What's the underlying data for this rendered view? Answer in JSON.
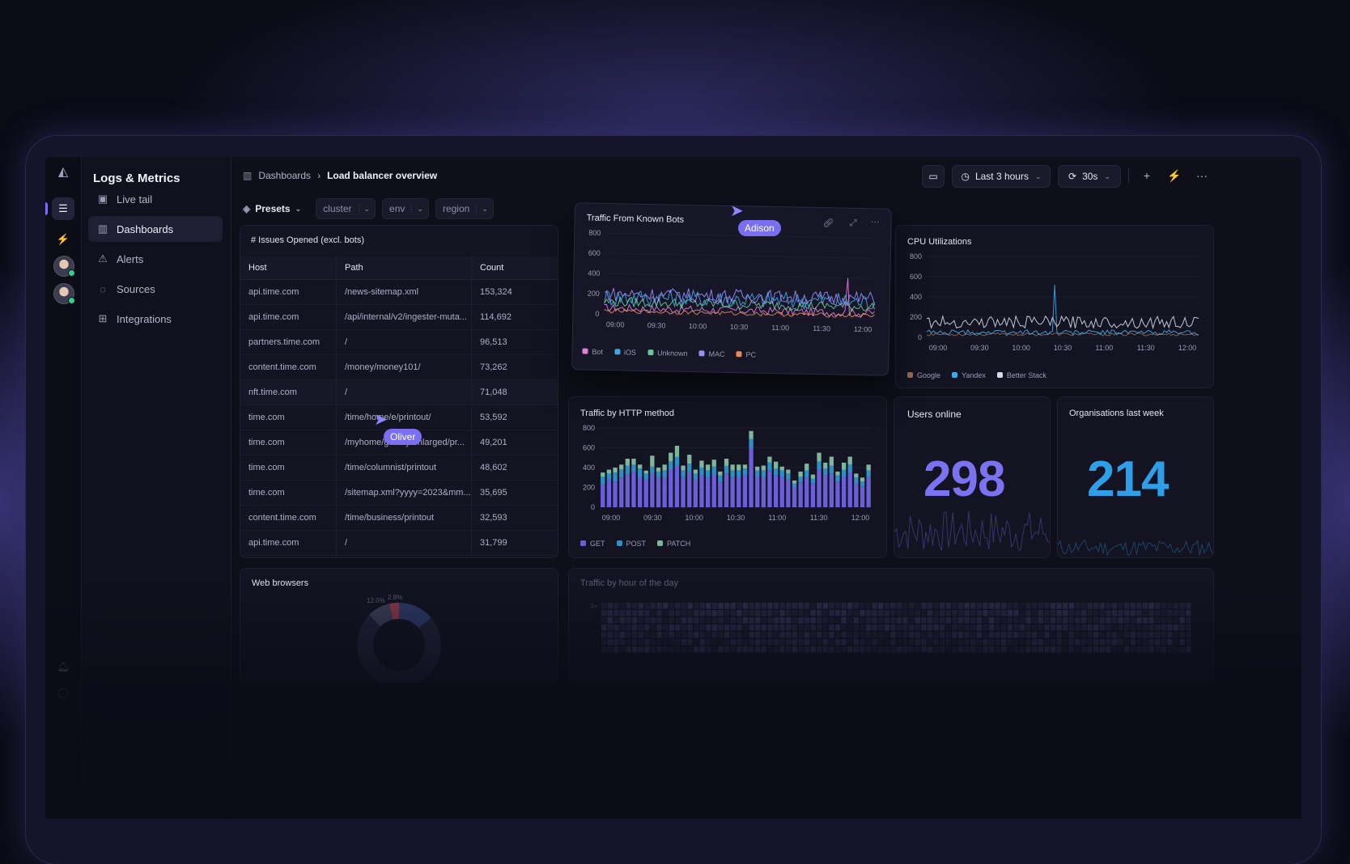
{
  "app": {
    "title": "Logs & Metrics"
  },
  "sidebar": {
    "items": [
      {
        "label": "Live tail",
        "icon": "terminal-icon",
        "glyph": "▣"
      },
      {
        "label": "Dashboards",
        "icon": "dashboard-icon",
        "glyph": "▥",
        "active": true
      },
      {
        "label": "Alerts",
        "icon": "alert-triangle-icon",
        "glyph": "⚠"
      },
      {
        "label": "Sources",
        "icon": "sources-icon",
        "glyph": "◌"
      },
      {
        "label": "Integrations",
        "icon": "integrations-icon",
        "glyph": "⊞"
      }
    ]
  },
  "breadcrumb": {
    "root": "Dashboards",
    "sep": "›",
    "current": "Load balancer overview"
  },
  "header": {
    "time_range": "Last 3 hours",
    "refresh": "30s",
    "add": "+",
    "bolt": "⚡",
    "more": "···"
  },
  "filters": {
    "presets": "Presets",
    "chips": [
      "cluster",
      "env",
      "region"
    ]
  },
  "issues_panel": {
    "title": "# Issues Opened (excl. bots)",
    "columns": [
      "Host",
      "Path",
      "Count"
    ],
    "rows": [
      [
        "api.time.com",
        "/news-sitemap.xml",
        "153,324"
      ],
      [
        "api.time.com",
        "/api/internal/v2/ingester-muta...",
        "114,692"
      ],
      [
        "partners.time.com",
        "/",
        "96,513"
      ],
      [
        "content.time.com",
        "/money/money101/",
        "73,262"
      ],
      [
        "nft.time.com",
        "/",
        "71,048"
      ],
      [
        "time.com",
        "/time/home/e/printout/",
        "53,592"
      ],
      [
        "time.com",
        "/myhome/gallery/enlarged/pr...",
        "49,201"
      ],
      [
        "time.com",
        "/time/columnist/printout",
        "48,602"
      ],
      [
        "time.com",
        "/sitemap.xml?yyyy=2023&mm...",
        "35,695"
      ],
      [
        "content.time.com",
        "/time/business/printout",
        "32,593"
      ],
      [
        "api.time.com",
        "/",
        "31,799"
      ]
    ]
  },
  "cursors": [
    {
      "name": "Oliver"
    },
    {
      "name": "Adison"
    }
  ],
  "bots_panel": {
    "title": "Traffic From Known Bots"
  },
  "cpu_panel": {
    "title": "CPU Utilizations"
  },
  "http_panel": {
    "title": "Traffic by HTTP method"
  },
  "users_online": {
    "title": "Users online",
    "value": "298",
    "color": "#7b72f2"
  },
  "orgs_last_week": {
    "title": "Organisations last week",
    "value": "214",
    "color": "#2f9ee8"
  },
  "browsers_panel": {
    "title": "Web browsers",
    "slice_labels": [
      "12.0%",
      "2.8%"
    ]
  },
  "hour_panel": {
    "title": "Traffic by hour of the day",
    "row_label": "3+"
  },
  "chart_data": [
    {
      "id": "bots",
      "type": "line",
      "title": "Traffic From Known Bots",
      "x_ticks": [
        "09:00",
        "09:30",
        "10:00",
        "10:30",
        "11:00",
        "11:30",
        "12:00"
      ],
      "y_ticks": [
        0,
        200,
        400,
        600,
        800
      ],
      "ylim": [
        0,
        800
      ],
      "series": [
        {
          "name": "Bot",
          "color": "#e07fd6",
          "base": 60,
          "amp": 40,
          "spike_at": 0.9,
          "spike_to": 400
        },
        {
          "name": "iOS",
          "color": "#3da8e6",
          "base": 170,
          "amp": 90
        },
        {
          "name": "Unknown",
          "color": "#6cc59a",
          "base": 120,
          "amp": 50
        },
        {
          "name": "MAC",
          "color": "#9a8cff",
          "base": 200,
          "amp": 70
        },
        {
          "name": "PC",
          "color": "#e88a5a",
          "base": 30,
          "amp": 20
        }
      ]
    },
    {
      "id": "cpu",
      "type": "line",
      "title": "CPU Utilizations",
      "x_ticks": [
        "09:00",
        "09:30",
        "10:00",
        "10:30",
        "11:00",
        "11:30",
        "12:00"
      ],
      "y_ticks": [
        0,
        200,
        400,
        600,
        800
      ],
      "ylim": [
        0,
        800
      ],
      "series": [
        {
          "name": "Google",
          "color": "#8c6b5a",
          "base": 30,
          "amp": 15
        },
        {
          "name": "Yandex",
          "color": "#3da8e6",
          "base": 50,
          "amp": 25,
          "spike_at": 0.47,
          "spike_to": 520
        },
        {
          "name": "Better Stack",
          "color": "#d8d8ea",
          "base": 150,
          "amp": 60
        }
      ]
    },
    {
      "id": "http",
      "type": "bar",
      "stacked": true,
      "title": "Traffic by HTTP method",
      "x_ticks": [
        "09:00",
        "09:30",
        "10:00",
        "10:30",
        "11:00",
        "11:30",
        "12:00"
      ],
      "y_ticks": [
        0,
        200,
        400,
        600,
        800
      ],
      "ylim": [
        0,
        800
      ],
      "series": [
        {
          "name": "GET",
          "color": "#6a5fd8",
          "values": [
            230,
            280,
            260,
            300,
            330,
            360,
            310,
            280,
            340,
            300,
            300,
            380,
            420,
            300,
            360,
            280,
            320,
            300,
            330,
            260,
            340,
            300,
            310,
            320,
            600,
            310,
            300,
            370,
            320,
            310,
            280,
            200,
            250,
            300,
            240,
            380,
            320,
            340,
            260,
            310,
            350,
            240,
            210,
            300
          ]
        },
        {
          "name": "POST",
          "color": "#2e8fc6",
          "values": [
            80,
            60,
            90,
            80,
            90,
            70,
            80,
            60,
            70,
            60,
            70,
            80,
            90,
            70,
            80,
            60,
            80,
            70,
            80,
            60,
            80,
            70,
            60,
            70,
            90,
            60,
            70,
            80,
            70,
            60,
            60,
            40,
            60,
            70,
            50,
            80,
            70,
            80,
            60,
            70,
            80,
            60,
            50,
            70
          ]
        },
        {
          "name": "PATCH",
          "color": "#7fb59a",
          "values": [
            40,
            40,
            50,
            50,
            70,
            60,
            40,
            30,
            110,
            40,
            60,
            90,
            110,
            50,
            90,
            40,
            70,
            60,
            70,
            40,
            70,
            60,
            60,
            40,
            80,
            40,
            50,
            60,
            70,
            40,
            40,
            30,
            50,
            70,
            40,
            90,
            60,
            90,
            40,
            70,
            80,
            40,
            40,
            60
          ]
        }
      ]
    }
  ]
}
